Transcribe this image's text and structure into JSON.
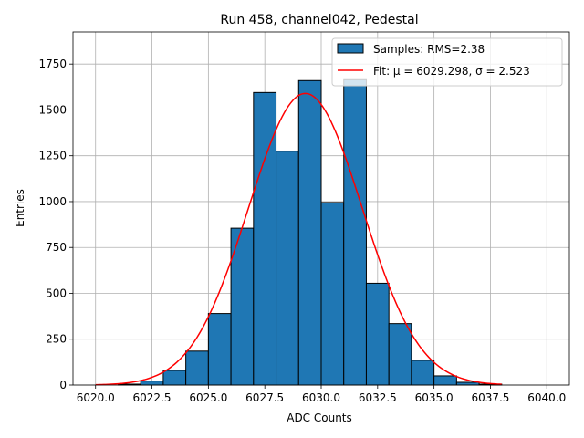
{
  "chart_data": {
    "type": "bar",
    "title": "Run 458, channel042, Pedestal",
    "xlabel": "ADC Counts",
    "ylabel": "Entries",
    "xlim": [
      6019.0,
      6041.0
    ],
    "ylim": [
      0,
      1925
    ],
    "xticks": [
      6020.0,
      6022.5,
      6025.0,
      6027.5,
      6030.0,
      6032.5,
      6035.0,
      6037.5,
      6040.0
    ],
    "xtick_labels": [
      "6020.0",
      "6022.5",
      "6025.0",
      "6027.5",
      "6030.0",
      "6032.5",
      "6035.0",
      "6037.5",
      "6040.0"
    ],
    "yticks": [
      0,
      250,
      500,
      750,
      1000,
      1250,
      1500,
      1750
    ],
    "ytick_labels": [
      "0",
      "250",
      "500",
      "750",
      "1000",
      "1250",
      "1500",
      "1750"
    ],
    "grid": true,
    "histogram": {
      "bin_edges": [
        6021,
        6022,
        6023,
        6024,
        6025,
        6026,
        6027,
        6028,
        6029,
        6030,
        6031,
        6032,
        6033,
        6034,
        6035,
        6036,
        6037,
        6038
      ],
      "counts": [
        5,
        22,
        80,
        185,
        390,
        855,
        1595,
        1275,
        1660,
        995,
        1665,
        555,
        335,
        135,
        50,
        15,
        5
      ],
      "fill": "#1f77b4",
      "edge": "#000000",
      "legend_label": "Samples: RMS=2.38"
    },
    "fit": {
      "mu": 6029.298,
      "sigma": 2.523,
      "amplitude": 1590,
      "x_range": [
        6020.0,
        6038.0
      ],
      "color": "#ff0000",
      "legend_label": "Fit: μ = 6029.298, σ = 2.523"
    },
    "legend_position": "top-right"
  }
}
